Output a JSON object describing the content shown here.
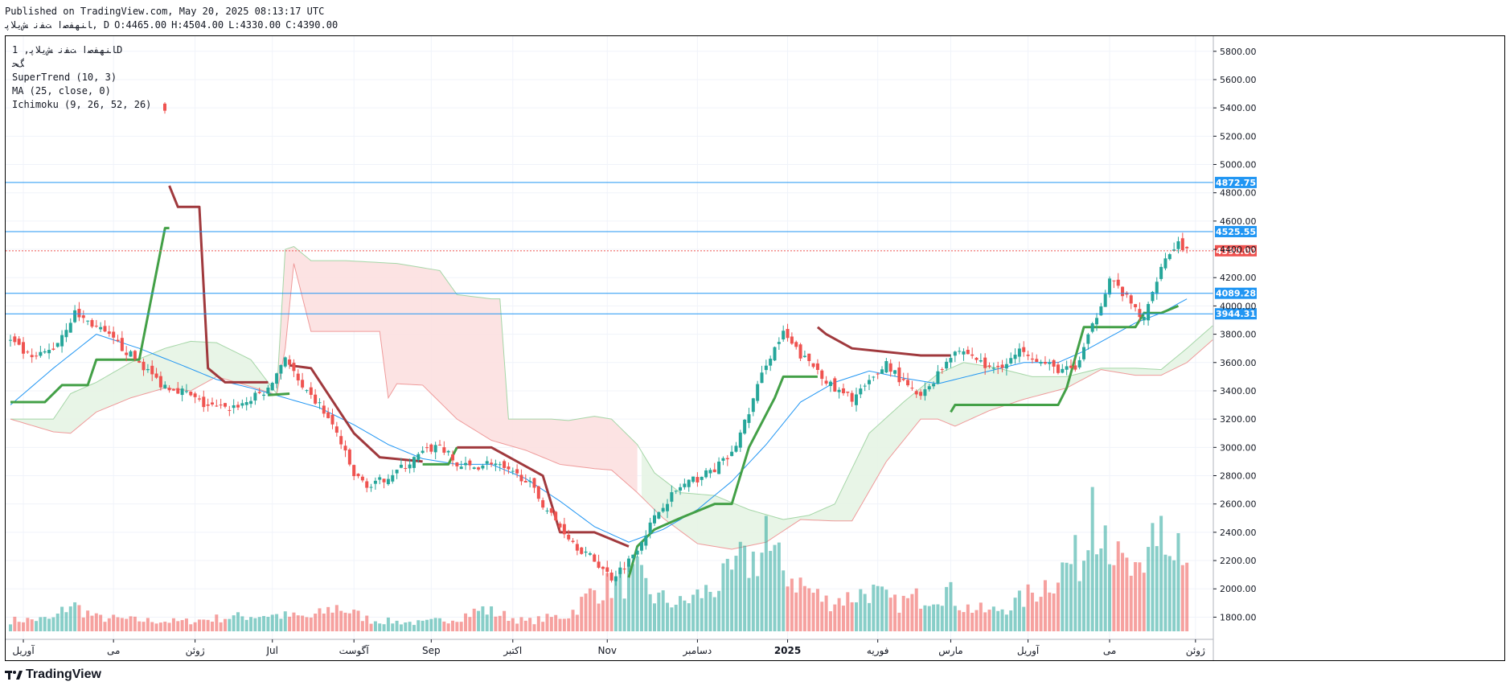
{
  "header": {
    "published": "Published on TradingView.com, May 20, 2025 08:13:17 UTC",
    "symbol": "ﺎﻨﻬﻔﺻﺍ ﺖﻔﻧ ﺶﻳﻼﭘ, D",
    "open": "O:4465.00",
    "high": "H:4504.00",
    "low": "L:4330.00",
    "close": "C:4390.00"
  },
  "legend": {
    "symbol_line": "ﺎﻨﻬﻔﺻﺍ ﺖﻔﻧ ﺶﻳﻼﭘ, 1D",
    "sub_line": "ﮓﺤ",
    "supertrend": "SuperTrend (10, 3)",
    "ma": "MA (25, close, 0)",
    "ichimoku": "Ichimoku (9, 26, 52, 26)"
  },
  "footer": {
    "brand": "TradingView"
  },
  "colors": {
    "up": "#26a69a",
    "down": "#ef5350",
    "ma": "#2196f3",
    "supertrend_up": "#43a047",
    "supertrend_down": "#a0393d",
    "hline": "#2196f3",
    "last": "#ef5350",
    "cloud_bull": "#e6f4e4",
    "cloud_bear": "#fce0e0"
  },
  "chart_data": {
    "type": "candlestick",
    "y_axis": {
      "min": 1700,
      "max": 5850,
      "ticks": [
        1800,
        2000,
        2200,
        2400,
        2600,
        2800,
        3000,
        3200,
        3400,
        3600,
        3800,
        4000,
        4200,
        4400,
        4600,
        4800,
        5000,
        5200,
        5400,
        5600,
        5800
      ]
    },
    "x_axis_labels": [
      {
        "label": "آوریل",
        "idx": 3
      },
      {
        "label": "می",
        "idx": 24
      },
      {
        "label": "ژوئن",
        "idx": 43
      },
      {
        "label": "Jul",
        "idx": 61
      },
      {
        "label": "آگوست",
        "idx": 80
      },
      {
        "label": "Sep",
        "idx": 98
      },
      {
        "label": "اکتبر",
        "idx": 117
      },
      {
        "label": "Nov",
        "idx": 139
      },
      {
        "label": "دسامبر",
        "idx": 160
      },
      {
        "label": "2025",
        "idx": 181
      },
      {
        "label": "فوریه",
        "idx": 202
      },
      {
        "label": "مارس",
        "idx": 219
      },
      {
        "label": "آوریل",
        "idx": 237
      },
      {
        "label": "می",
        "idx": 256
      },
      {
        "label": "ژوئن",
        "idx": 276
      }
    ],
    "horizontal_levels": [
      {
        "value": 4872.75,
        "label": "4872.75"
      },
      {
        "value": 4525.55,
        "label": "4525.55"
      },
      {
        "value": 4089.28,
        "label": "4089.28"
      },
      {
        "value": 3944.31,
        "label": "3944.31"
      }
    ],
    "last_price": {
      "value": 4390.0,
      "label": "4390.00"
    },
    "bar_count": 280,
    "close_anchors": [
      [
        0,
        3750
      ],
      [
        5,
        3620
      ],
      [
        10,
        3700
      ],
      [
        15,
        3950
      ],
      [
        20,
        3850
      ],
      [
        25,
        3730
      ],
      [
        30,
        3600
      ],
      [
        35,
        3450
      ],
      [
        38,
        3420
      ],
      [
        40,
        3400
      ],
      [
        45,
        3300
      ],
      [
        50,
        3270
      ],
      [
        55,
        3320
      ],
      [
        58,
        3380
      ],
      [
        60,
        3400
      ],
      [
        64,
        3650
      ],
      [
        68,
        3400
      ],
      [
        72,
        3300
      ],
      [
        76,
        3100
      ],
      [
        80,
        2800
      ],
      [
        84,
        2720
      ],
      [
        88,
        2800
      ],
      [
        92,
        2870
      ],
      [
        96,
        2960
      ],
      [
        100,
        3020
      ],
      [
        104,
        2870
      ],
      [
        108,
        2860
      ],
      [
        112,
        2900
      ],
      [
        116,
        2820
      ],
      [
        120,
        2780
      ],
      [
        124,
        2600
      ],
      [
        128,
        2440
      ],
      [
        132,
        2300
      ],
      [
        136,
        2200
      ],
      [
        140,
        2080
      ],
      [
        144,
        2200
      ],
      [
        148,
        2400
      ],
      [
        152,
        2600
      ],
      [
        156,
        2720
      ],
      [
        160,
        2780
      ],
      [
        164,
        2850
      ],
      [
        168,
        2950
      ],
      [
        172,
        3250
      ],
      [
        176,
        3600
      ],
      [
        180,
        3800
      ],
      [
        184,
        3650
      ],
      [
        188,
        3550
      ],
      [
        192,
        3400
      ],
      [
        196,
        3350
      ],
      [
        200,
        3450
      ],
      [
        204,
        3600
      ],
      [
        208,
        3450
      ],
      [
        212,
        3350
      ],
      [
        216,
        3520
      ],
      [
        220,
        3700
      ],
      [
        224,
        3650
      ],
      [
        228,
        3550
      ],
      [
        232,
        3600
      ],
      [
        236,
        3700
      ],
      [
        240,
        3600
      ],
      [
        244,
        3550
      ],
      [
        248,
        3550
      ],
      [
        252,
        3850
      ],
      [
        256,
        4200
      ],
      [
        260,
        4050
      ],
      [
        264,
        3900
      ],
      [
        268,
        4300
      ],
      [
        272,
        4450
      ],
      [
        274,
        4390
      ]
    ],
    "supertrend": {
      "up": [
        [
          0,
          3320
        ],
        [
          8,
          3320
        ],
        [
          12,
          3440
        ],
        [
          18,
          3440
        ],
        [
          20,
          3620
        ],
        [
          30,
          3620
        ],
        [
          36,
          4550
        ],
        [
          37,
          4550
        ]
      ],
      "down": [
        [
          37,
          4850
        ],
        [
          39,
          4700
        ],
        [
          44,
          4700
        ],
        [
          46,
          3560
        ],
        [
          50,
          3460
        ],
        [
          60,
          3460
        ]
      ],
      "up2": [
        [
          60,
          3370
        ],
        [
          65,
          3380
        ]
      ],
      "down2": [
        [
          65,
          3580
        ],
        [
          70,
          3560
        ],
        [
          80,
          3100
        ],
        [
          86,
          2930
        ],
        [
          96,
          2900
        ]
      ],
      "up3": [
        [
          96,
          2880
        ],
        [
          102,
          2880
        ],
        [
          104,
          3000
        ]
      ],
      "down3": [
        [
          104,
          3000
        ],
        [
          112,
          3000
        ],
        [
          124,
          2800
        ],
        [
          128,
          2400
        ],
        [
          136,
          2400
        ],
        [
          144,
          2300
        ]
      ],
      "up4": [
        [
          144,
          2080
        ],
        [
          146,
          2300
        ],
        [
          150,
          2420
        ],
        [
          156,
          2500
        ],
        [
          164,
          2600
        ],
        [
          168,
          2600
        ],
        [
          172,
          3000
        ],
        [
          178,
          3350
        ],
        [
          180,
          3500
        ],
        [
          188,
          3500
        ]
      ],
      "down4": [
        [
          188,
          3850
        ],
        [
          190,
          3800
        ],
        [
          196,
          3700
        ],
        [
          212,
          3650
        ],
        [
          216,
          3650
        ],
        [
          219,
          3650
        ]
      ],
      "up5": [
        [
          219,
          3250
        ],
        [
          220,
          3300
        ],
        [
          232,
          3300
        ],
        [
          240,
          3300
        ],
        [
          244,
          3300
        ],
        [
          246,
          3420
        ],
        [
          250,
          3850
        ],
        [
          262,
          3850
        ],
        [
          264,
          3950
        ],
        [
          268,
          3950
        ],
        [
          272,
          4000
        ]
      ]
    },
    "ma_anchors": [
      [
        0,
        3300
      ],
      [
        10,
        3560
      ],
      [
        20,
        3800
      ],
      [
        30,
        3700
      ],
      [
        40,
        3580
      ],
      [
        48,
        3480
      ],
      [
        56,
        3420
      ],
      [
        64,
        3350
      ],
      [
        72,
        3280
      ],
      [
        80,
        3160
      ],
      [
        88,
        3020
      ],
      [
        96,
        2920
      ],
      [
        104,
        2880
      ],
      [
        112,
        2880
      ],
      [
        120,
        2780
      ],
      [
        128,
        2620
      ],
      [
        136,
        2440
      ],
      [
        144,
        2330
      ],
      [
        152,
        2420
      ],
      [
        160,
        2560
      ],
      [
        168,
        2760
      ],
      [
        176,
        3020
      ],
      [
        184,
        3320
      ],
      [
        192,
        3460
      ],
      [
        200,
        3540
      ],
      [
        208,
        3490
      ],
      [
        216,
        3450
      ],
      [
        220,
        3480
      ],
      [
        228,
        3540
      ],
      [
        236,
        3600
      ],
      [
        244,
        3600
      ],
      [
        250,
        3680
      ],
      [
        256,
        3780
      ],
      [
        262,
        3880
      ],
      [
        268,
        3950
      ],
      [
        274,
        4050
      ]
    ],
    "cloud_upper": [
      [
        0,
        3200
      ],
      [
        10,
        3200
      ],
      [
        14,
        3380
      ],
      [
        20,
        3460
      ],
      [
        28,
        3600
      ],
      [
        36,
        3700
      ],
      [
        42,
        3750
      ],
      [
        48,
        3740
      ],
      [
        56,
        3620
      ],
      [
        62,
        3380
      ],
      [
        64,
        4400
      ],
      [
        66,
        4420
      ],
      [
        70,
        4320
      ],
      [
        78,
        4320
      ],
      [
        90,
        4300
      ],
      [
        100,
        4250
      ],
      [
        104,
        4080
      ],
      [
        112,
        4050
      ],
      [
        114,
        4050
      ],
      [
        116,
        3200
      ],
      [
        126,
        3200
      ],
      [
        130,
        3190
      ],
      [
        136,
        3220
      ],
      [
        140,
        3200
      ],
      [
        146,
        3020
      ],
      [
        150,
        2820
      ],
      [
        156,
        2680
      ],
      [
        164,
        2660
      ],
      [
        172,
        2560
      ],
      [
        180,
        2490
      ],
      [
        186,
        2520
      ],
      [
        192,
        2600
      ],
      [
        200,
        3100
      ],
      [
        208,
        3320
      ],
      [
        216,
        3520
      ],
      [
        222,
        3600
      ],
      [
        230,
        3560
      ],
      [
        238,
        3500
      ],
      [
        246,
        3500
      ],
      [
        254,
        3560
      ],
      [
        262,
        3560
      ],
      [
        268,
        3550
      ],
      [
        274,
        3700
      ],
      [
        280,
        3860
      ]
    ],
    "cloud_lower": [
      [
        0,
        3200
      ],
      [
        10,
        3110
      ],
      [
        14,
        3100
      ],
      [
        20,
        3250
      ],
      [
        28,
        3350
      ],
      [
        36,
        3420
      ],
      [
        42,
        3400
      ],
      [
        48,
        3500
      ],
      [
        56,
        3430
      ],
      [
        62,
        3370
      ],
      [
        64,
        3700
      ],
      [
        66,
        4300
      ],
      [
        70,
        3820
      ],
      [
        78,
        3820
      ],
      [
        86,
        3820
      ],
      [
        88,
        3350
      ],
      [
        90,
        3450
      ],
      [
        96,
        3440
      ],
      [
        104,
        3200
      ],
      [
        112,
        3050
      ],
      [
        120,
        2980
      ],
      [
        128,
        2880
      ],
      [
        136,
        2850
      ],
      [
        140,
        2840
      ],
      [
        146,
        2680
      ],
      [
        152,
        2500
      ],
      [
        160,
        2320
      ],
      [
        168,
        2280
      ],
      [
        176,
        2330
      ],
      [
        184,
        2490
      ],
      [
        192,
        2480
      ],
      [
        196,
        2480
      ],
      [
        204,
        2900
      ],
      [
        212,
        3200
      ],
      [
        216,
        3200
      ],
      [
        220,
        3150
      ],
      [
        228,
        3260
      ],
      [
        236,
        3340
      ],
      [
        246,
        3420
      ],
      [
        254,
        3550
      ],
      [
        262,
        3510
      ],
      [
        268,
        3510
      ],
      [
        274,
        3600
      ],
      [
        280,
        3760
      ]
    ],
    "volume_scale": {
      "base_price": 1700,
      "max_price": 2720
    },
    "volume_anchors": [
      [
        0,
        0.08
      ],
      [
        10,
        0.09
      ],
      [
        14,
        0.2
      ],
      [
        20,
        0.1
      ],
      [
        30,
        0.08
      ],
      [
        40,
        0.07
      ],
      [
        50,
        0.1
      ],
      [
        60,
        0.12
      ],
      [
        70,
        0.1
      ],
      [
        76,
        0.18
      ],
      [
        84,
        0.08
      ],
      [
        96,
        0.06
      ],
      [
        104,
        0.1
      ],
      [
        110,
        0.16
      ],
      [
        120,
        0.07
      ],
      [
        130,
        0.12
      ],
      [
        136,
        0.3
      ],
      [
        142,
        0.35
      ],
      [
        146,
        0.4
      ],
      [
        150,
        0.25
      ],
      [
        156,
        0.2
      ],
      [
        164,
        0.32
      ],
      [
        172,
        0.5
      ],
      [
        176,
        0.6
      ],
      [
        180,
        0.45
      ],
      [
        186,
        0.3
      ],
      [
        190,
        0.22
      ],
      [
        196,
        0.25
      ],
      [
        200,
        0.3
      ],
      [
        206,
        0.2
      ],
      [
        212,
        0.25
      ],
      [
        218,
        0.3
      ],
      [
        222,
        0.18
      ],
      [
        228,
        0.14
      ],
      [
        234,
        0.2
      ],
      [
        240,
        0.32
      ],
      [
        246,
        0.48
      ],
      [
        250,
        0.55
      ],
      [
        252,
        0.82
      ],
      [
        254,
        0.95
      ],
      [
        256,
        0.7
      ],
      [
        258,
        0.5
      ],
      [
        260,
        0.45
      ],
      [
        264,
        0.35
      ],
      [
        266,
        0.75
      ],
      [
        270,
        0.55
      ],
      [
        274,
        0.43
      ]
    ],
    "volume_spikes": [
      [
        170,
        0.62
      ],
      [
        176,
        0.8
      ],
      [
        252,
        1.0
      ],
      [
        268,
        0.8
      ],
      [
        272,
        0.68
      ]
    ]
  }
}
